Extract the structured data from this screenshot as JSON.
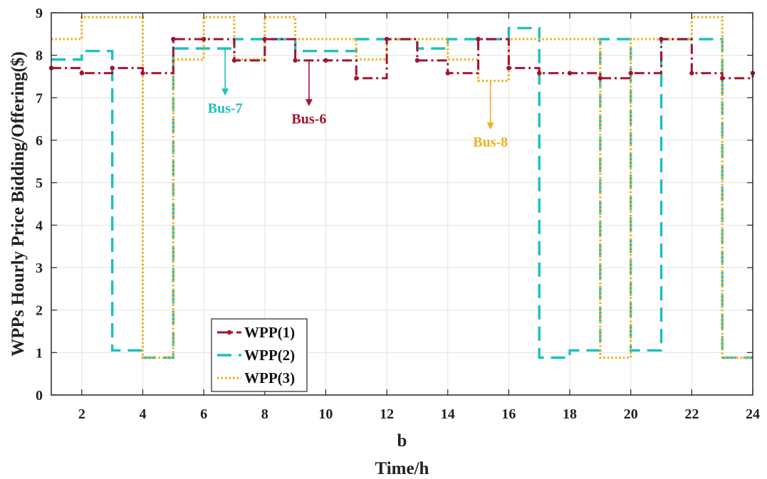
{
  "chart_data": {
    "type": "line",
    "subtype": "step",
    "xlabel": "Time/h",
    "panel_label": "b",
    "ylabel": "WPPs Hourly Price Bidding/Offering($)",
    "xlim": [
      1,
      24
    ],
    "ylim": [
      0,
      9
    ],
    "xticks": [
      2,
      4,
      6,
      8,
      10,
      12,
      14,
      16,
      18,
      20,
      22,
      24
    ],
    "yticks": [
      0,
      1,
      2,
      3,
      4,
      5,
      6,
      7,
      8,
      9
    ],
    "grid": true,
    "legend_position": "bottom-left",
    "x": [
      1,
      2,
      3,
      4,
      5,
      6,
      7,
      8,
      9,
      10,
      11,
      12,
      13,
      14,
      15,
      16,
      17,
      18,
      19,
      20,
      21,
      22,
      23,
      24
    ],
    "series": [
      {
        "name": "WPP(1)",
        "color": "#a2142f",
        "style": "dash-dot-marker",
        "values": [
          7.7,
          7.58,
          7.7,
          7.58,
          8.38,
          8.38,
          7.88,
          8.38,
          7.88,
          7.88,
          7.46,
          8.38,
          7.88,
          7.58,
          8.38,
          7.7,
          7.58,
          7.58,
          7.46,
          7.58,
          8.38,
          7.58,
          7.46,
          7.58
        ]
      },
      {
        "name": "WPP(2)",
        "color": "#1fbfbf",
        "style": "dashed",
        "values": [
          7.9,
          8.1,
          1.05,
          0.88,
          8.16,
          8.16,
          8.38,
          8.38,
          8.1,
          8.1,
          8.38,
          8.38,
          8.16,
          8.38,
          8.38,
          8.64,
          0.88,
          1.05,
          8.38,
          1.05,
          8.38,
          8.38,
          0.88,
          0.88
        ]
      },
      {
        "name": "WPP(3)",
        "color": "#edb120",
        "style": "dotted",
        "values": [
          8.38,
          8.9,
          8.9,
          0.88,
          7.9,
          8.9,
          7.9,
          8.9,
          8.38,
          8.38,
          7.9,
          8.38,
          8.38,
          7.9,
          7.4,
          8.38,
          8.38,
          8.38,
          0.88,
          8.38,
          8.38,
          8.9,
          0.88,
          0.88
        ]
      }
    ],
    "annotations": [
      {
        "text": "Bus-7",
        "color": "#1fbfbf",
        "arrow_x": 6.7,
        "arrow_from_y": 8.15,
        "arrow_to_y": 7.05
      },
      {
        "text": "Bus-6",
        "color": "#a2142f",
        "arrow_x": 9.45,
        "arrow_from_y": 7.88,
        "arrow_to_y": 6.8
      },
      {
        "text": "Bus-8",
        "color": "#edb120",
        "arrow_x": 15.4,
        "arrow_from_y": 7.4,
        "arrow_to_y": 6.25
      }
    ]
  }
}
